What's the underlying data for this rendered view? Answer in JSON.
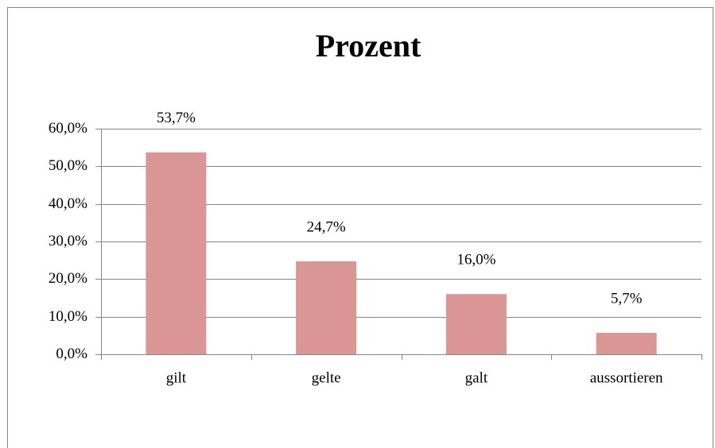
{
  "chart_data": {
    "type": "bar",
    "title": "Prozent",
    "categories": [
      "gilt",
      "gelte",
      "galt",
      "aussortieren"
    ],
    "values": [
      53.7,
      24.7,
      16.0,
      5.7
    ],
    "value_labels": [
      "53,7%",
      "24,7%",
      "16,0%",
      "5,7%"
    ],
    "color": "#d99694",
    "ylim": [
      0,
      60
    ],
    "yticks": [
      {
        "value": 0,
        "label": "0,0%"
      },
      {
        "value": 10,
        "label": "10,0%"
      },
      {
        "value": 20,
        "label": "20,0%"
      },
      {
        "value": 30,
        "label": "30,0%"
      },
      {
        "value": 40,
        "label": "40,0%"
      },
      {
        "value": 50,
        "label": "50,0%"
      },
      {
        "value": 60,
        "label": "60,0%"
      }
    ],
    "grid": true
  }
}
